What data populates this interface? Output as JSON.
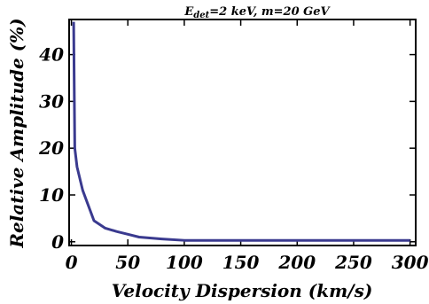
{
  "chart_data": {
    "type": "line",
    "title_parts": {
      "e": "E",
      "sub": "det",
      "rest": "=2 keV, m=20 GeV"
    },
    "xlabel": "Velocity Dispersion (km/s)",
    "ylabel": "Relative Amplitude (%)",
    "xlim": [
      -2,
      305
    ],
    "ylim": [
      -0.8,
      47.5
    ],
    "xticks": [
      0,
      50,
      100,
      150,
      200,
      250,
      300
    ],
    "yticks": [
      0,
      10,
      20,
      30,
      40
    ],
    "grid": false,
    "series": [
      {
        "color": "#3a3a8f",
        "x": [
          2,
          3,
          5,
          10,
          20,
          30,
          40,
          50,
          60,
          80,
          100,
          150,
          200,
          250,
          300
        ],
        "y": [
          47,
          20,
          16,
          11,
          4.5,
          2.9,
          2.2,
          1.6,
          1.0,
          0.6,
          0.3,
          0.3,
          0.3,
          0.3,
          0.3
        ]
      }
    ]
  }
}
